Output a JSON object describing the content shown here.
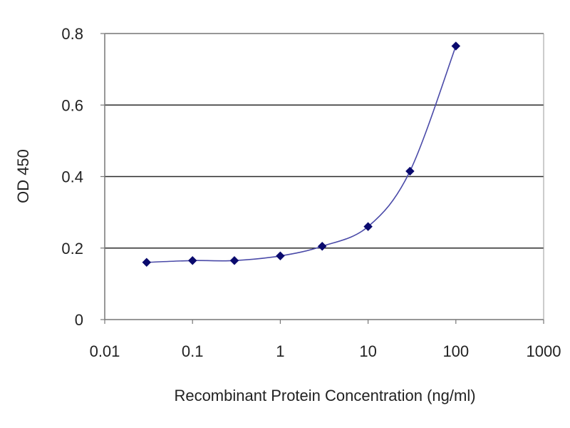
{
  "chart_data": {
    "type": "scatter",
    "title": "",
    "xlabel": "Recombinant Protein Concentration (ng/ml)",
    "ylabel": "OD 450",
    "x_scale": "log",
    "xlim": [
      0.01,
      1000
    ],
    "ylim": [
      0,
      0.8
    ],
    "x_ticks": [
      {
        "value": 0.01,
        "label": "0.01"
      },
      {
        "value": 0.1,
        "label": "0.1"
      },
      {
        "value": 1,
        "label": "1"
      },
      {
        "value": 10,
        "label": "10"
      },
      {
        "value": 100,
        "label": "100"
      },
      {
        "value": 1000,
        "label": "1000"
      }
    ],
    "y_ticks": [
      {
        "value": 0,
        "label": "0"
      },
      {
        "value": 0.2,
        "label": "0.2"
      },
      {
        "value": 0.4,
        "label": "0.4"
      },
      {
        "value": 0.6,
        "label": "0.6"
      },
      {
        "value": 0.8,
        "label": "0.8"
      }
    ],
    "grid": "horizontal",
    "legend": "none",
    "series": [
      {
        "x": [
          0.03,
          0.1,
          0.3,
          1,
          3,
          10,
          30,
          100
        ],
        "y": [
          0.16,
          0.165,
          0.165,
          0.178,
          0.205,
          0.26,
          0.415,
          0.765
        ],
        "marker": "diamond",
        "fit_line": true
      }
    ],
    "colors": {
      "marker": "#0a0a6e",
      "line": "#4a4aa8",
      "grid": "#2b2b2b",
      "axis": "#777777"
    }
  }
}
